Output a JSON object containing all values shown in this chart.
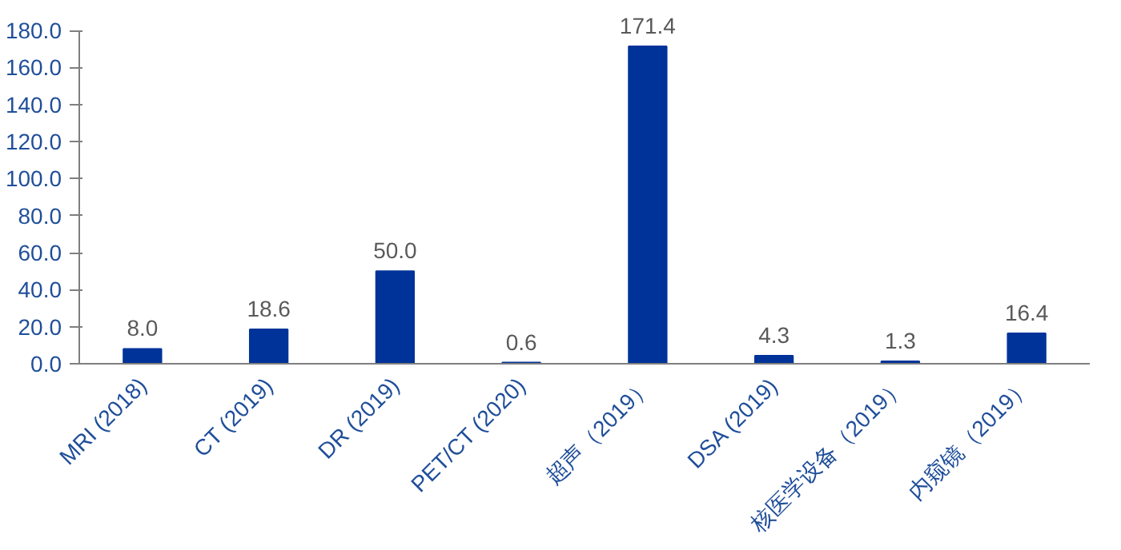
{
  "chart_data": {
    "type": "bar",
    "categories": [
      "MRI (2018)",
      "CT (2019)",
      "DR (2019)",
      "PET/CT (2020)",
      "超声（2019）",
      "DSA (2019)",
      "核医学设备（2019）",
      "内窥镜（2019）"
    ],
    "values": [
      8.0,
      18.6,
      50.0,
      0.6,
      171.4,
      4.3,
      1.3,
      16.4
    ],
    "color": "#003399",
    "ylim": [
      0,
      180
    ],
    "yticks": [
      {
        "value": 0,
        "label": "0.0"
      },
      {
        "value": 20,
        "label": "20.0"
      },
      {
        "value": 40,
        "label": "40.0"
      },
      {
        "value": 60,
        "label": "60.0"
      },
      {
        "value": 80,
        "label": "80.0"
      },
      {
        "value": 100,
        "label": "100.0"
      },
      {
        "value": 120,
        "label": "120.0"
      },
      {
        "value": 140,
        "label": "140.0"
      },
      {
        "value": 160,
        "label": "160.0"
      },
      {
        "value": 180,
        "label": "180.0"
      }
    ],
    "value_labels": [
      "8.0",
      "18.6",
      "50.0",
      "0.6",
      "171.4",
      "4.3",
      "1.3",
      "16.4"
    ],
    "grid": false
  }
}
